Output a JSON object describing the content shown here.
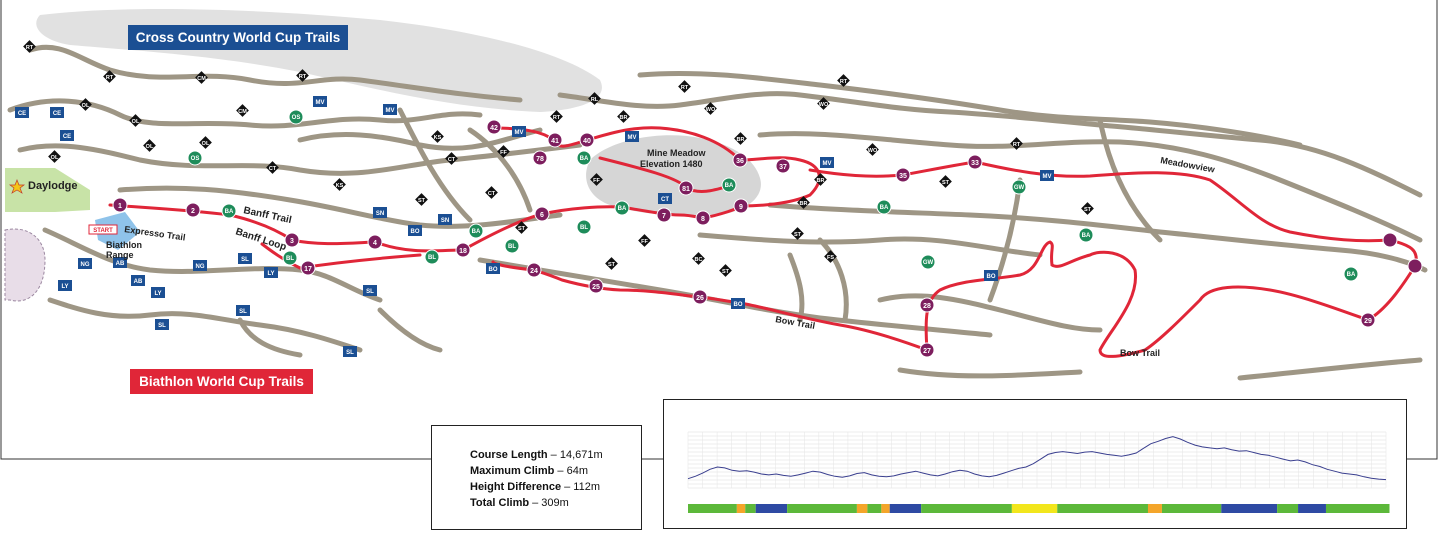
{
  "titles": {
    "cross_country": "Cross Country World Cup Trails",
    "biathlon": "Biathlon World Cup Trails"
  },
  "labels": {
    "daylodge": "Daylodge",
    "start": "START",
    "biathlon_range_1": "Biathlon",
    "biathlon_range_2": "Range",
    "expresso_trail": "Expresso Trail",
    "banff_trail": "Banff Trail",
    "banff_loop": "Banff Loop",
    "mine_meadow_1": "Mine Meadow",
    "mine_meadow_2": "Elevation 1480",
    "meadowview": "Meadowview",
    "bow_trail_1": "Bow Trail",
    "bow_trail_2": "Bow Trail"
  },
  "stats": {
    "course_length_label": "Course Length",
    "course_length_value": " – 14,671m",
    "max_climb_label": "Maximum Climb",
    "max_climb_value": " – 64m",
    "height_diff_label": "Height Difference",
    "height_diff_value": " – 112m",
    "total_climb_label": "Total Climb",
    "total_climb_value": " – 309m"
  },
  "numbered_markers": [
    "1",
    "2",
    "3",
    "4",
    "6",
    "7",
    "8",
    "9",
    "17",
    "18",
    "24",
    "25",
    "26",
    "27",
    "28",
    "29",
    "33",
    "35",
    "36",
    "37",
    "40",
    "41",
    "42",
    "78",
    "81"
  ],
  "blue_markers": [
    "CE",
    "CE",
    "CE",
    "MV",
    "MV",
    "MV",
    "MV",
    "MV",
    "MV",
    "SN",
    "SN",
    "BO",
    "BO",
    "BO",
    "BO",
    "CT",
    "NG",
    "NG",
    "AB",
    "AB",
    "LY",
    "LY",
    "LY",
    "SL",
    "SL",
    "SL",
    "SL",
    "SL"
  ],
  "green_markers": [
    "OS",
    "OS",
    "BA",
    "BA",
    "BA",
    "BA",
    "BA",
    "BA",
    "BA",
    "BA",
    "BL",
    "BL",
    "BL",
    "BL",
    "GW",
    "GW"
  ],
  "diamond_markers": [
    "RT",
    "RT",
    "RT",
    "RT",
    "RT",
    "RT",
    "RT",
    "OL",
    "OL",
    "OL",
    "OL",
    "OL",
    "CM",
    "CM",
    "KS",
    "KS",
    "CT",
    "CT",
    "CT",
    "ST",
    "ST",
    "ST",
    "ST",
    "ST",
    "ST",
    "ST",
    "FF",
    "FF",
    "FF",
    "BR",
    "BR",
    "BR",
    "BR",
    "RL",
    "WO",
    "WO",
    "WO",
    "FS",
    "BC"
  ],
  "elevation_profile": {
    "colors": {
      "green": "#5cb83a",
      "orange": "#f4a52a",
      "blue": "#2e4aa3",
      "yellow": "#f2e61c",
      "line": "#3a3f8f"
    },
    "bands": [
      {
        "color": "green",
        "frac": 0.07
      },
      {
        "color": "orange",
        "frac": 0.012
      },
      {
        "color": "green",
        "frac": 0.015
      },
      {
        "color": "blue",
        "frac": 0.045
      },
      {
        "color": "green",
        "frac": 0.1
      },
      {
        "color": "orange",
        "frac": 0.015
      },
      {
        "color": "green",
        "frac": 0.02
      },
      {
        "color": "orange",
        "frac": 0.012
      },
      {
        "color": "blue",
        "frac": 0.045
      },
      {
        "color": "green",
        "frac": 0.13
      },
      {
        "color": "yellow",
        "frac": 0.065
      },
      {
        "color": "green",
        "frac": 0.13
      },
      {
        "color": "orange",
        "frac": 0.02
      },
      {
        "color": "green",
        "frac": 0.085
      },
      {
        "color": "blue",
        "frac": 0.08
      },
      {
        "color": "green",
        "frac": 0.03
      },
      {
        "color": "blue",
        "frac": 0.04
      },
      {
        "color": "green",
        "frac": 0.091
      }
    ],
    "values": [
      1420,
      1425,
      1432,
      1440,
      1445,
      1443,
      1438,
      1436,
      1437,
      1434,
      1430,
      1428,
      1430,
      1427,
      1425,
      1428,
      1432,
      1436,
      1434,
      1429,
      1425,
      1423,
      1426,
      1431,
      1433,
      1428,
      1425,
      1424,
      1426,
      1430,
      1433,
      1436,
      1432,
      1428,
      1426,
      1430,
      1435,
      1438,
      1436,
      1430,
      1426,
      1424,
      1427,
      1432,
      1437,
      1442,
      1445,
      1452,
      1462,
      1472,
      1476,
      1478,
      1476,
      1474,
      1477,
      1478,
      1475,
      1472,
      1470,
      1468,
      1471,
      1475,
      1485,
      1495,
      1500,
      1506,
      1510,
      1505,
      1498,
      1492,
      1488,
      1486,
      1484,
      1486,
      1482,
      1479,
      1480,
      1476,
      1472,
      1470,
      1466,
      1462,
      1458,
      1460,
      1456,
      1450,
      1446,
      1440,
      1436,
      1432,
      1430,
      1428,
      1424,
      1421,
      1419,
      1418
    ]
  },
  "colors": {
    "trail_gray": "#9e9685",
    "route_red": "#e02638",
    "blue_marker": "#1b4f93",
    "green_marker": "#1e8c5a",
    "purple_marker": "#7d1e5e",
    "lake_gray": "#d6d6d6"
  }
}
